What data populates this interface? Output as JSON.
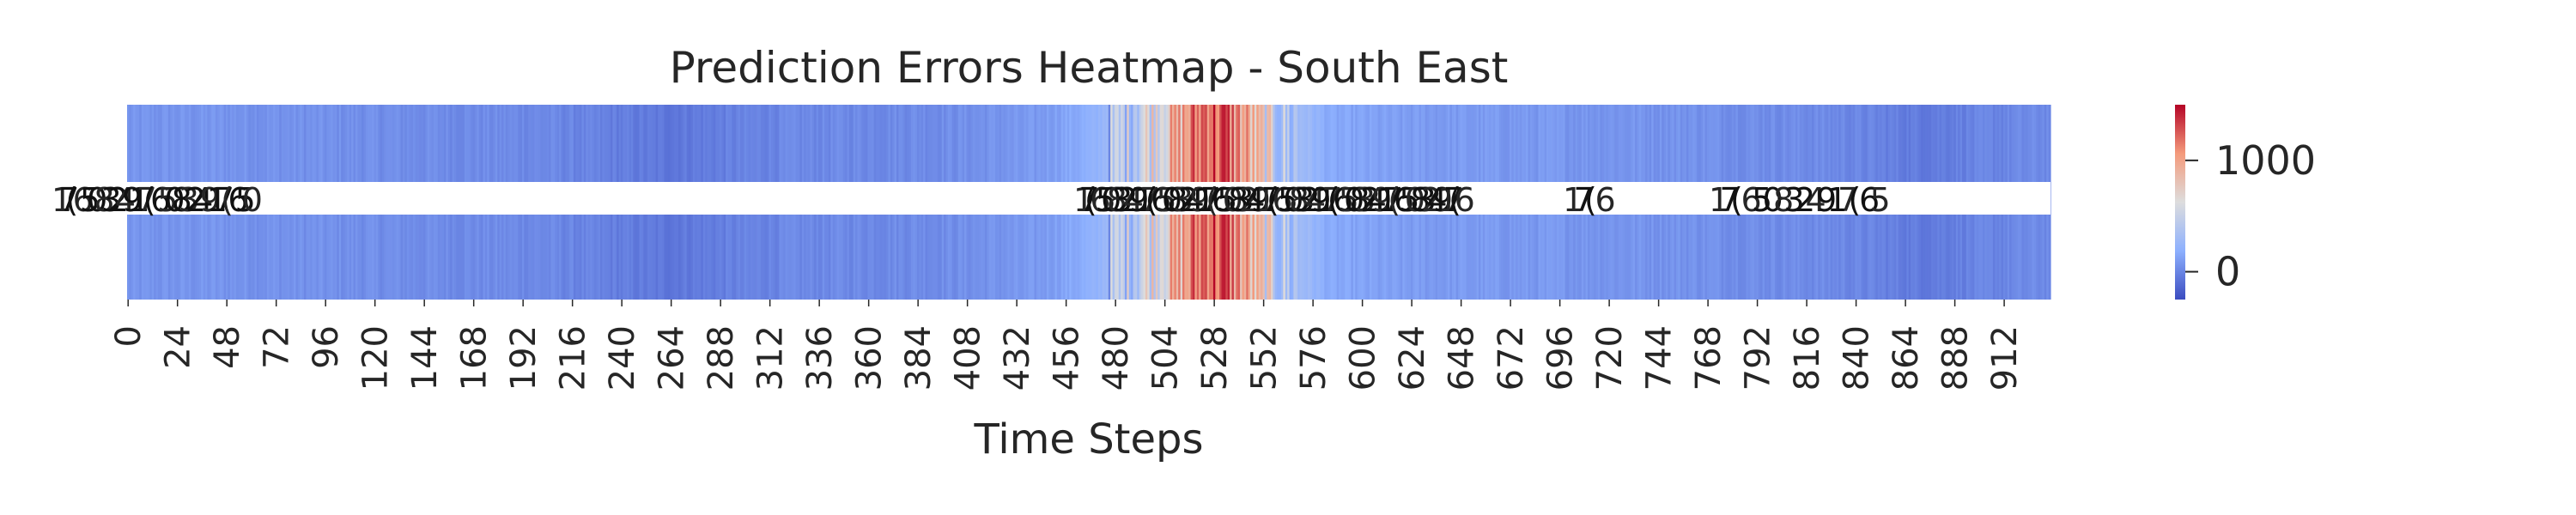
{
  "chart_data": {
    "type": "heatmap",
    "title": "Prediction Errors Heatmap - South East",
    "xlabel": "Time Steps",
    "ylabel": "",
    "x_range": [
      0,
      935
    ],
    "x_ticks": [
      "0",
      "24",
      "48",
      "72",
      "96",
      "120",
      "144",
      "168",
      "192",
      "216",
      "240",
      "264",
      "288",
      "312",
      "336",
      "360",
      "384",
      "408",
      "432",
      "456",
      "480",
      "504",
      "528",
      "552",
      "576",
      "600",
      "624",
      "648",
      "672",
      "696",
      "720",
      "744",
      "768",
      "792",
      "816",
      "840",
      "864",
      "888",
      "912"
    ],
    "rows": 1,
    "colormap": "coolwarm",
    "colorbar": {
      "ticks": [
        "0",
        "1000"
      ],
      "range": [
        -250,
        1500
      ]
    },
    "annotations": "cell values printed over the middle of the row (overlapping, illegible)",
    "profile": [
      {
        "t": 0,
        "value": 60
      },
      {
        "t": 40,
        "value": 70
      },
      {
        "t": 120,
        "value": 40
      },
      {
        "t": 200,
        "value": 20
      },
      {
        "t": 260,
        "value": -60
      },
      {
        "t": 320,
        "value": 10
      },
      {
        "t": 400,
        "value": 40
      },
      {
        "t": 440,
        "value": 80
      },
      {
        "t": 470,
        "value": 200
      },
      {
        "t": 490,
        "value": 500
      },
      {
        "t": 510,
        "value": 900
      },
      {
        "t": 525,
        "value": 1300
      },
      {
        "t": 535,
        "value": 1200
      },
      {
        "t": 545,
        "value": 900
      },
      {
        "t": 560,
        "value": 400
      },
      {
        "t": 585,
        "value": 150
      },
      {
        "t": 620,
        "value": 100
      },
      {
        "t": 700,
        "value": 80
      },
      {
        "t": 760,
        "value": 60
      },
      {
        "t": 830,
        "value": 20
      },
      {
        "t": 870,
        "value": -40
      },
      {
        "t": 935,
        "value": 30
      }
    ]
  }
}
